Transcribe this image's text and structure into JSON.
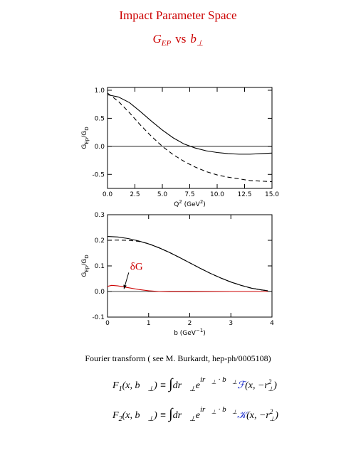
{
  "title": "Impact Parameter Space",
  "subtitle": {
    "g": "G",
    "g_sub": "EP",
    "vs": "vs",
    "b": "b",
    "b_sub": "⊥"
  },
  "chart_data": [
    {
      "type": "line",
      "ylabel": {
        "g": "G",
        "g_sub": "Ep",
        "slash": "/G",
        "d_sub": "D"
      },
      "xlabel": {
        "q": "Q",
        "q_sup": "2",
        "unit": " (GeV",
        "unit_sup": "2",
        "close": ")"
      },
      "xlim": [
        0,
        15
      ],
      "ylim": [
        -0.75,
        1.05
      ],
      "xticks": [
        {
          "value": 0,
          "label": "0.0"
        },
        2.5,
        {
          "value": 5,
          "label": "5.0"
        },
        7.5,
        {
          "value": 10,
          "label": "10.0"
        },
        12.5,
        {
          "value": 15,
          "label": "15.0"
        }
      ],
      "yticks": [
        -0.5,
        {
          "value": 0,
          "label": "0.0"
        },
        0.5,
        {
          "value": 1,
          "label": "1.0"
        }
      ],
      "hline": 0,
      "series": [
        {
          "color": "#000000",
          "dashed": false,
          "x": [
            0,
            1,
            2,
            3,
            4,
            5,
            6,
            7,
            8,
            9,
            10,
            11,
            12,
            13,
            14,
            15
          ],
          "values": [
            0.92,
            0.88,
            0.78,
            0.62,
            0.45,
            0.29,
            0.15,
            0.04,
            -0.03,
            -0.08,
            -0.11,
            -0.13,
            -0.14,
            -0.14,
            -0.13,
            -0.12
          ]
        },
        {
          "color": "#000000",
          "dashed": true,
          "x": [
            0,
            1,
            2,
            3,
            4,
            5,
            6,
            7,
            8,
            9,
            10,
            11,
            12,
            13,
            14,
            15
          ],
          "values": [
            0.95,
            0.8,
            0.6,
            0.38,
            0.18,
            0.0,
            -0.15,
            -0.27,
            -0.37,
            -0.45,
            -0.51,
            -0.55,
            -0.58,
            -0.61,
            -0.62,
            -0.63
          ]
        }
      ]
    },
    {
      "type": "line",
      "ylabel": {
        "g": "G",
        "g_sub": "Ep",
        "slash": "/G",
        "d_sub": "D"
      },
      "xlabel": {
        "b": "b (GeV",
        "b_sup": "−1",
        "close": ")"
      },
      "xlim": [
        0,
        4
      ],
      "ylim": [
        -0.1,
        0.3
      ],
      "xticks": [
        0,
        1,
        2,
        3,
        4
      ],
      "yticks": [
        -0.1,
        {
          "value": 0,
          "label": "0.0"
        },
        0.1,
        0.2,
        0.3
      ],
      "hline": 0,
      "annotation": {
        "text": "δG",
        "color": "#cc0000",
        "x": 0.55,
        "y": 0.085,
        "arrow_to": [
          0.4,
          0.01
        ]
      },
      "series": [
        {
          "color": "#000000",
          "dashed": false,
          "x": [
            0,
            0.25,
            0.5,
            0.75,
            1,
            1.25,
            1.5,
            1.75,
            2,
            2.25,
            2.5,
            2.75,
            3,
            3.25,
            3.5,
            3.75,
            3.9
          ],
          "values": [
            0.215,
            0.213,
            0.207,
            0.198,
            0.186,
            0.171,
            0.153,
            0.133,
            0.112,
            0.091,
            0.071,
            0.053,
            0.037,
            0.024,
            0.013,
            0.006,
            0.003
          ]
        },
        {
          "color": "#000000",
          "dashed": true,
          "x": [
            0,
            0.25,
            0.5,
            0.75,
            1,
            1.25,
            1.5,
            1.75,
            2,
            2.25,
            2.5,
            2.75,
            3,
            3.25,
            3.5,
            3.75,
            3.9
          ],
          "values": [
            0.2,
            0.201,
            0.2,
            0.196,
            0.187,
            0.171,
            0.153,
            0.133,
            0.112,
            0.091,
            0.071,
            0.053,
            0.037,
            0.024,
            0.013,
            0.006,
            0.003
          ]
        },
        {
          "color": "#cc0000",
          "dashed": false,
          "x": [
            0,
            0.1,
            0.25,
            0.5,
            0.75,
            1,
            1.25,
            1.5,
            2,
            3,
            3.9
          ],
          "values": [
            0.02,
            0.024,
            0.022,
            0.015,
            0.008,
            0.003,
            0.0,
            -0.001,
            -0.001,
            0,
            0
          ]
        }
      ]
    }
  ],
  "caption": "Fourier transform ( see M. Burkardt, hep-ph/0005108)",
  "formulas": [
    {
      "parts": [
        "F",
        "1",
        "(x, ",
        "b⃗",
        "⊥",
        ") ≡ ",
        "∫",
        "d",
        "r⃗",
        "⊥",
        "e",
        "i",
        "r⃗",
        "⊥",
        " · ",
        "b⃗",
        "⊥",
        "ℱ",
        "(x, −r",
        "2",
        "⊥",
        ")"
      ]
    },
    {
      "parts": [
        "F",
        "2",
        "(x, ",
        "b⃗",
        "⊥",
        ") ≡ ",
        "∫",
        "d",
        "r⃗",
        "⊥",
        "e",
        "i",
        "r⃗",
        "⊥",
        " · ",
        "b⃗",
        "⊥",
        "𝒦",
        "(x, −r",
        "2",
        "⊥",
        ")"
      ]
    }
  ]
}
